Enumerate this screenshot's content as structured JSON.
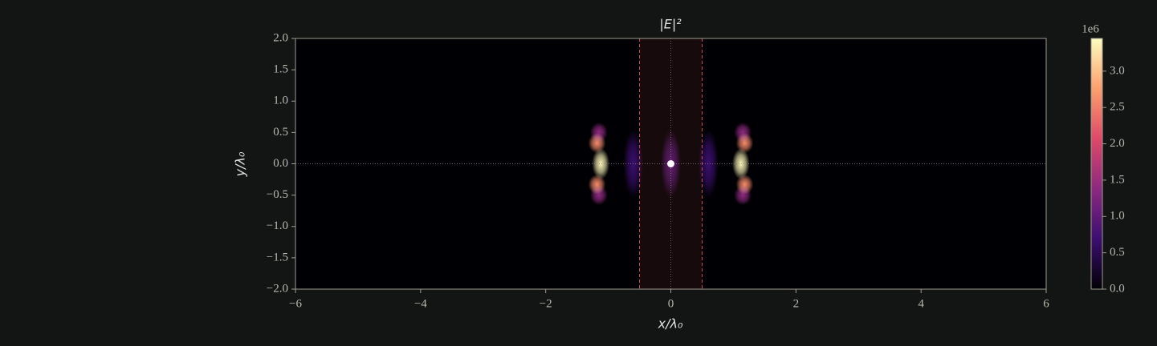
{
  "chart_data": {
    "type": "heatmap",
    "title": "|E|²",
    "xlabel": "x/λ₀",
    "ylabel": "y/λ₀",
    "xlim": [
      -6,
      6
    ],
    "ylim": [
      -2,
      2
    ],
    "xticks": [
      {
        "value": -6,
        "label": "−6"
      },
      {
        "value": -4,
        "label": "−4"
      },
      {
        "value": -2,
        "label": "−2"
      },
      0,
      2,
      4,
      6
    ],
    "yticks": [
      {
        "value": 2,
        "label": "2.0"
      },
      {
        "value": 1.5,
        "label": "1.5"
      },
      {
        "value": 1,
        "label": "1.0"
      },
      {
        "value": 0.5,
        "label": "0.5"
      },
      {
        "value": 0,
        "label": "0.0"
      },
      {
        "value": -0.5,
        "label": "−0.5"
      },
      {
        "value": -1,
        "label": "−1.0"
      },
      {
        "value": -1.5,
        "label": "−1.5"
      },
      {
        "value": -2,
        "label": "−2.0"
      }
    ],
    "colorbar": {
      "colormap": "magma",
      "clim": [
        0,
        3.45
      ],
      "offset_label": "1e6",
      "ticks": [
        {
          "value": 0,
          "label": "0.0"
        },
        {
          "value": 0.5,
          "label": "0.5"
        },
        {
          "value": 1,
          "label": "1.0"
        },
        {
          "value": 1.5,
          "label": "1.5"
        },
        {
          "value": 2,
          "label": "2.0"
        },
        {
          "value": 2.5,
          "label": "2.5"
        },
        {
          "value": 3,
          "label": "3.0"
        }
      ]
    },
    "slab": [
      -0.5,
      0.5
    ],
    "slab_color": "#c0504d",
    "source": [
      0,
      0
    ],
    "spots": [
      {
        "x": 0,
        "y": 0,
        "value": 0.9
      },
      {
        "x": -0.6,
        "y": 0,
        "value": 0.7
      },
      {
        "x": 0.6,
        "y": 0,
        "value": 0.7
      },
      {
        "x": -1.12,
        "y": 0,
        "value": 3.4
      },
      {
        "x": 1.12,
        "y": 0,
        "value": 3.4
      },
      {
        "x": -1.15,
        "y": 0.5,
        "value": 1.4
      },
      {
        "x": -1.15,
        "y": -0.5,
        "value": 1.4
      },
      {
        "x": 1.15,
        "y": 0.5,
        "value": 1.4
      },
      {
        "x": 1.15,
        "y": -0.5,
        "value": 1.4
      },
      {
        "x": -1.18,
        "y": 0.33,
        "value": 2.6
      },
      {
        "x": -1.18,
        "y": -0.33,
        "value": 2.6
      },
      {
        "x": 1.18,
        "y": 0.33,
        "value": 2.6
      },
      {
        "x": 1.18,
        "y": -0.33,
        "value": 2.6
      }
    ]
  }
}
